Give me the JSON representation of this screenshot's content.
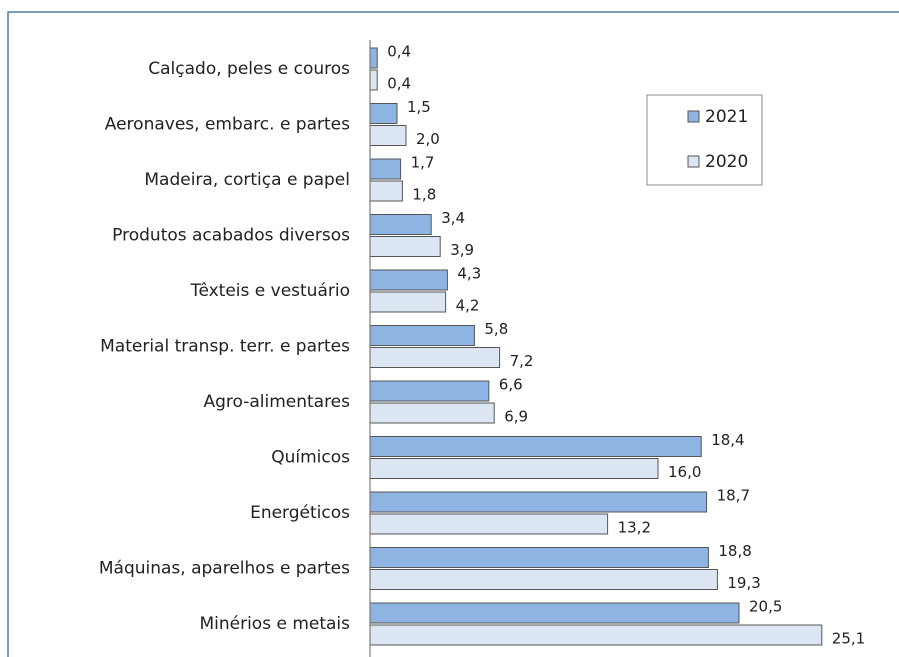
{
  "chart_data": {
    "type": "barh",
    "categories": [
      "Calçado, peles e couros",
      "Aeronaves, embarc. e partes",
      "Madeira, cortiça e papel",
      "Produtos acabados diversos",
      "Têxteis e vestuário",
      "Material transp. terr. e partes",
      "Agro-alimentares",
      "Químicos",
      "Energéticos",
      "Máquinas, aparelhos e partes",
      "Minérios e metais"
    ],
    "series": [
      {
        "name": "2021",
        "color": "#8db4e2",
        "values": [
          0.4,
          1.5,
          1.7,
          3.4,
          4.3,
          5.8,
          6.6,
          18.4,
          18.7,
          18.8,
          20.5
        ],
        "value_labels": [
          "0,4",
          "1,5",
          "1,7",
          "3,4",
          "4,3",
          "5,8",
          "6,6",
          "18,4",
          "18,7",
          "18,8",
          "20,5"
        ]
      },
      {
        "name": "2020",
        "color": "#dce6f2",
        "values": [
          0.4,
          2.0,
          1.8,
          3.9,
          4.2,
          7.2,
          6.9,
          16.0,
          13.2,
          19.3,
          25.1
        ],
        "value_labels": [
          "0,4",
          "2,0",
          "1,8",
          "3,9",
          "4,2",
          "7,2",
          "6,9",
          "16,0",
          "13,2",
          "19,3",
          "25,1"
        ]
      }
    ],
    "xlim": [
      0,
      29
    ],
    "legend": "upper right"
  }
}
